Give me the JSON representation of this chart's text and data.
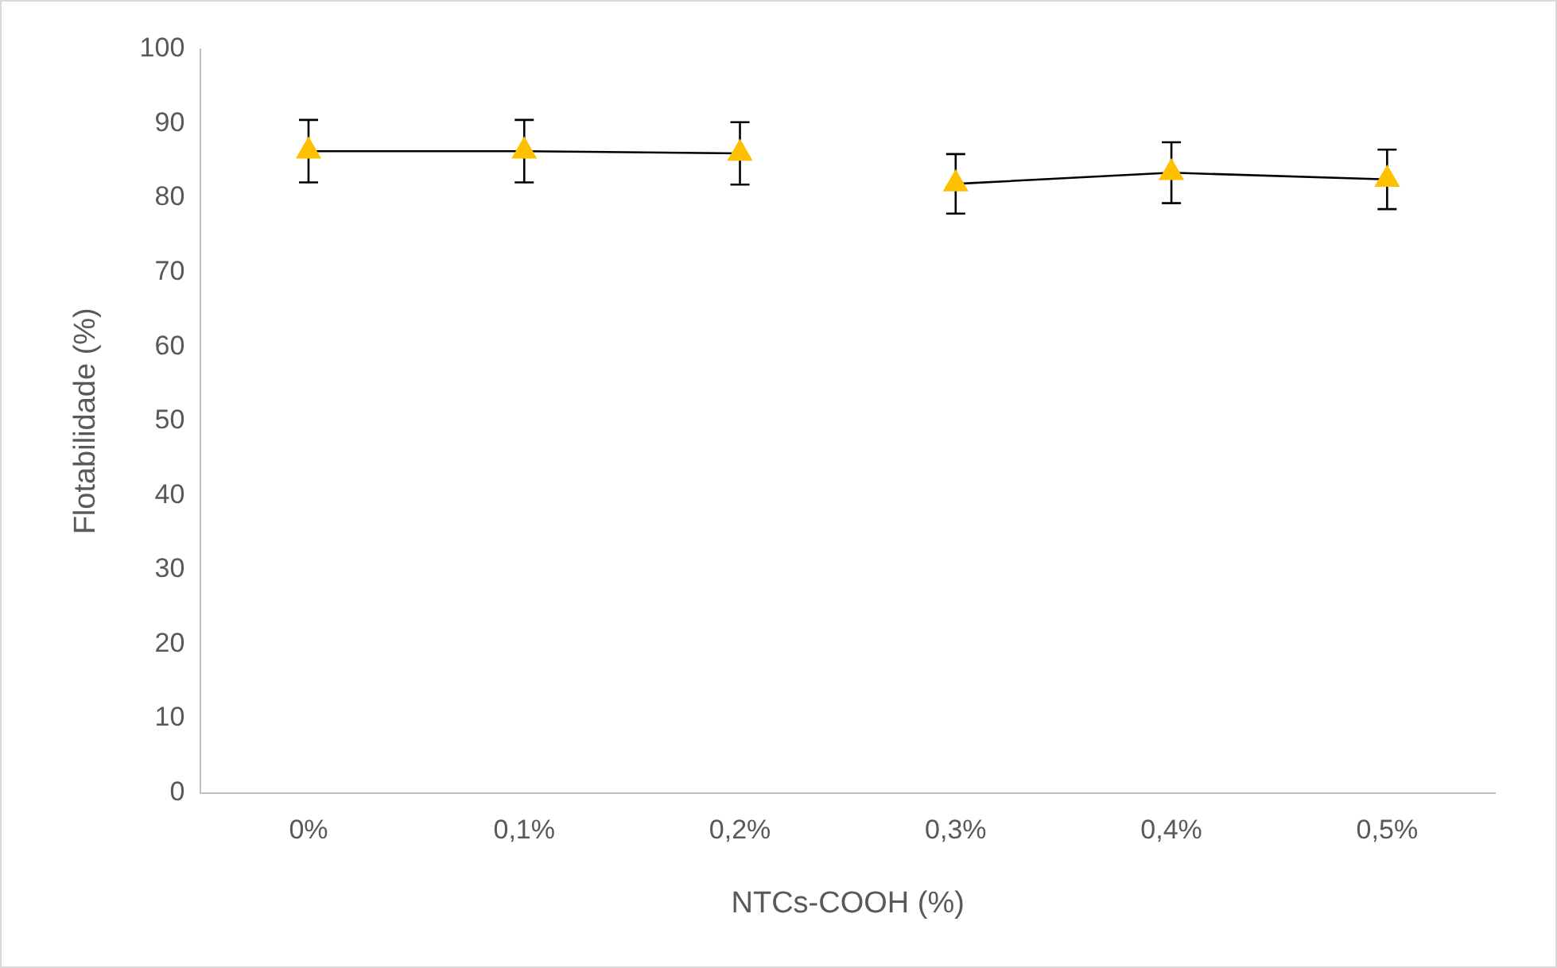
{
  "chart_data": {
    "type": "line",
    "xlabel": "NTCs-COOH (%)",
    "ylabel": "Flotabilidade (%)",
    "categories": [
      "0%",
      "0,1%",
      "0,2%",
      "0,3%",
      "0,4%",
      "0,5%"
    ],
    "series": [
      {
        "color": "#ffc000",
        "values": [
          86.3,
          86.3,
          86.0,
          null,
          null,
          null
        ],
        "errors": [
          4.2,
          4.2,
          4.2,
          null,
          null,
          null
        ]
      },
      {
        "color": "#ffc000",
        "values": [
          null,
          null,
          null,
          81.9,
          83.4,
          82.5
        ],
        "errors": [
          null,
          null,
          null,
          4.0,
          4.1,
          4.0
        ]
      }
    ],
    "ylim": [
      0,
      100
    ],
    "yticks": [
      0,
      10,
      20,
      30,
      40,
      50,
      60,
      70,
      80,
      90,
      100
    ],
    "grid": false,
    "legend": false,
    "marker": "triangle",
    "line_style": "solid"
  }
}
